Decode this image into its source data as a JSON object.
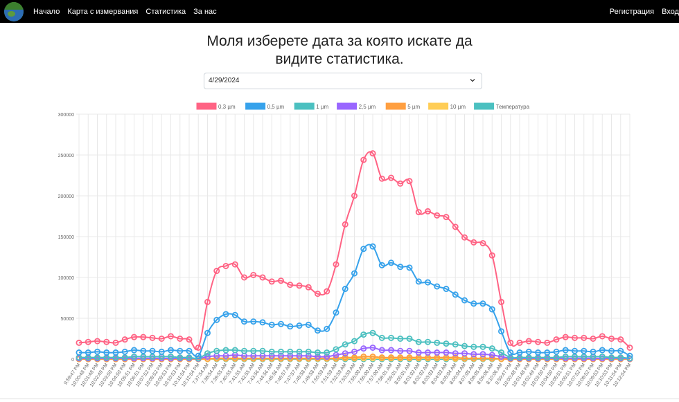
{
  "nav": {
    "links": [
      "Начало",
      "Карта с измервания",
      "Статистика",
      "За нас"
    ],
    "right": [
      "Регистрация",
      "Вход"
    ]
  },
  "page": {
    "title_line1": "Моля изберете дата за която искате да",
    "title_line2": "видите статистика.",
    "date_value": "4/29/2024"
  },
  "chart_data": {
    "type": "line",
    "title": "",
    "ylim": [
      0,
      300000
    ],
    "yticks": [
      "0",
      "50000",
      "100000",
      "150000",
      "200000",
      "250000",
      "300000"
    ],
    "categories": [
      "9:59:47 PM",
      "10:00:48 PM",
      "10:01:48 PM",
      "10:02:49 PM",
      "10:03:50 PM",
      "10:04:50 PM",
      "10:05:51 PM",
      "10:06:51 PM",
      "10:07:52 PM",
      "10:08:52 PM",
      "10:09:53 PM",
      "10:10:53 PM",
      "10:11:54 PM",
      "10:12:54 PM",
      "7:37:54 AM",
      "7:38:54 AM",
      "7:39:55 AM",
      "7:40:55 AM",
      "7:41:55 AM",
      "7:42:55 AM",
      "7:43:56 AM",
      "7:44:56 AM",
      "7:45:56 AM",
      "7:46:57 AM",
      "7:47:57 AM",
      "7:48:58 AM",
      "7:49:58 AM",
      "7:50:59 AM",
      "7:51:59 AM",
      "7:52:59 AM",
      "7:53:59 AM",
      "7:55:00 AM",
      "7:56:00 AM",
      "7:57:00 AM",
      "7:58:01 AM",
      "7:59:01 AM",
      "8:00:01 AM",
      "8:01:02 AM",
      "8:02:02 AM",
      "8:03:03 AM",
      "8:04:03 AM",
      "8:05:04 AM",
      "8:06:04 AM",
      "8:07:05 AM",
      "8:08:05 AM",
      "8:09:06 AM",
      "8:10:06 AM",
      "9:59:47 PM",
      "10:00:48 PM",
      "10:01:48 PM",
      "10:02:49 PM",
      "10:03:50 PM",
      "10:04:50 PM",
      "10:05:51 PM",
      "10:06:51 PM",
      "10:07:52 PM",
      "10:08:52 PM",
      "10:09:53 PM",
      "10:10:53 PM",
      "10:11:54 PM",
      "10:12:54 PM"
    ],
    "series": [
      {
        "name": "0,3 µm",
        "color": "#ff6384",
        "values": [
          20000,
          21000,
          22000,
          21000,
          20000,
          24000,
          27000,
          27000,
          26000,
          25000,
          28000,
          25000,
          24000,
          14000,
          70000,
          108000,
          114000,
          116000,
          100000,
          103000,
          100000,
          95000,
          96000,
          91000,
          90000,
          88000,
          80000,
          83000,
          116000,
          165000,
          200000,
          244000,
          252000,
          221000,
          222000,
          215000,
          218000,
          180000,
          181000,
          176000,
          174000,
          162000,
          149000,
          143000,
          142000,
          127000,
          70000,
          20000,
          20000,
          22000,
          21000,
          20000,
          24000,
          27000,
          26000,
          26000,
          25000,
          28000,
          25000,
          24000,
          14000
        ]
      },
      {
        "name": "0,5 µm",
        "color": "#36a2eb",
        "values": [
          8000,
          8000,
          9000,
          8000,
          8000,
          9000,
          11000,
          10000,
          10000,
          9000,
          11000,
          10000,
          10000,
          4000,
          32000,
          48000,
          55000,
          54000,
          46000,
          46000,
          45000,
          42000,
          43000,
          40000,
          41000,
          42000,
          35000,
          37000,
          57000,
          86000,
          105000,
          135000,
          138000,
          115000,
          118000,
          113000,
          112000,
          95000,
          94000,
          89000,
          86000,
          79000,
          72000,
          68000,
          68000,
          61000,
          34000,
          8000,
          8000,
          9000,
          8000,
          8000,
          9000,
          11000,
          10000,
          10000,
          9000,
          11000,
          10000,
          10000,
          4000
        ]
      },
      {
        "name": "1 µm",
        "color": "#4bc0c0",
        "values": [
          2000,
          2000,
          2000,
          2000,
          2000,
          2000,
          3000,
          3000,
          3000,
          3000,
          3000,
          2000,
          2000,
          1000,
          7000,
          10000,
          11000,
          11000,
          10000,
          10000,
          10000,
          9000,
          9000,
          9000,
          9000,
          9000,
          8000,
          8000,
          12000,
          18000,
          22000,
          30000,
          32000,
          26000,
          26000,
          25000,
          25000,
          21000,
          21000,
          20000,
          19000,
          18000,
          16000,
          15000,
          15000,
          13000,
          8000,
          2000,
          2000,
          2000,
          2000,
          2000,
          2000,
          3000,
          3000,
          3000,
          3000,
          3000,
          2000,
          2000,
          1000
        ]
      },
      {
        "name": "2,5 µm",
        "color": "#9966ff",
        "values": [
          1000,
          1000,
          1000,
          1000,
          1000,
          1000,
          1000,
          1000,
          1000,
          1000,
          1000,
          1000,
          1000,
          500,
          3000,
          4000,
          4000,
          5000,
          4000,
          4000,
          4000,
          4000,
          4000,
          4000,
          4000,
          4000,
          3000,
          3000,
          5000,
          7000,
          9000,
          13000,
          14000,
          11000,
          11000,
          10000,
          10000,
          8000,
          8000,
          8000,
          8000,
          7000,
          7000,
          6000,
          6000,
          5000,
          3000,
          1000,
          1000,
          1000,
          1000,
          1000,
          1000,
          1000,
          1000,
          1000,
          1000,
          1000,
          1000,
          1000,
          500
        ]
      },
      {
        "name": "5 µm",
        "color": "#ff9f40",
        "values": [
          0,
          0,
          0,
          0,
          0,
          0,
          0,
          0,
          0,
          0,
          0,
          0,
          0,
          0,
          500,
          1000,
          1000,
          1000,
          1000,
          1000,
          1000,
          1000,
          1000,
          1000,
          1000,
          1000,
          1000,
          1000,
          1000,
          2000,
          2000,
          3000,
          3000,
          2000,
          2000,
          2000,
          2000,
          2000,
          2000,
          2000,
          2000,
          2000,
          1000,
          1000,
          1000,
          1000,
          500,
          0,
          0,
          0,
          0,
          0,
          0,
          0,
          0,
          0,
          0,
          0,
          0,
          0,
          0
        ]
      },
      {
        "name": "10 µm",
        "color": "#ffcd56",
        "values": [
          0,
          0,
          0,
          0,
          0,
          0,
          0,
          0,
          0,
          0,
          0,
          0,
          0,
          0,
          0,
          500,
          500,
          500,
          500,
          500,
          500,
          500,
          500,
          500,
          500,
          500,
          500,
          500,
          500,
          1000,
          1000,
          1000,
          1000,
          1000,
          1000,
          1000,
          1000,
          1000,
          1000,
          1000,
          1000,
          500,
          500,
          500,
          500,
          500,
          0,
          0,
          0,
          0,
          0,
          0,
          0,
          0,
          0,
          0,
          0,
          0,
          0,
          0,
          0
        ]
      },
      {
        "name": "Температура",
        "color": "#4bc0c0",
        "values": [
          25,
          25,
          25,
          25,
          25,
          25,
          25,
          25,
          25,
          25,
          25,
          25,
          25,
          25,
          20,
          20,
          20,
          20,
          20,
          20,
          20,
          20,
          20,
          20,
          20,
          20,
          20,
          20,
          20,
          20,
          20,
          20,
          20,
          20,
          20,
          20,
          20,
          20,
          20,
          20,
          20,
          20,
          20,
          20,
          20,
          20,
          20,
          25,
          25,
          25,
          25,
          25,
          25,
          25,
          25,
          25,
          25,
          25,
          25,
          25,
          25
        ]
      }
    ]
  }
}
